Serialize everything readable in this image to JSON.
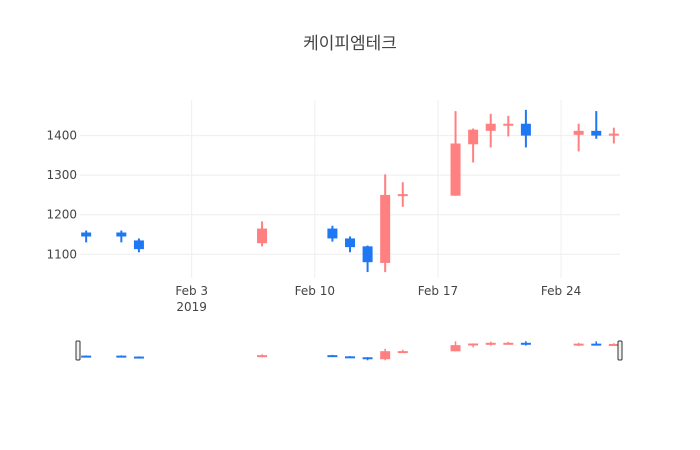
{
  "chart_data": {
    "type": "candlestick",
    "title": "케이피엠테크",
    "xlabel": "",
    "ylabel": "",
    "x_range": [
      "2019-01-28",
      "2019-02-27"
    ],
    "ylim": [
      1040,
      1490
    ],
    "y_ticks": [
      1100,
      1200,
      1300,
      1400
    ],
    "x_ticks": [
      {
        "date": "2019-02-03",
        "label": "Feb 3",
        "sublabel": "2019"
      },
      {
        "date": "2019-02-10",
        "label": "Feb 10",
        "sublabel": ""
      },
      {
        "date": "2019-02-17",
        "label": "Feb 17",
        "sublabel": ""
      },
      {
        "date": "2019-02-24",
        "label": "Feb 24",
        "sublabel": ""
      }
    ],
    "colors": {
      "increasing": "#ff8080",
      "decreasing": "#1f77f4",
      "grid": "#eeeeee",
      "text": "#444444"
    },
    "range_slider": true,
    "candles": [
      {
        "date": "2019-01-28",
        "open": 1155,
        "high": 1160,
        "low": 1130,
        "close": 1145
      },
      {
        "date": "2019-01-30",
        "open": 1155,
        "high": 1160,
        "low": 1130,
        "close": 1145
      },
      {
        "date": "2019-01-31",
        "open": 1135,
        "high": 1140,
        "low": 1105,
        "close": 1113
      },
      {
        "date": "2019-02-07",
        "open": 1128,
        "high": 1183,
        "low": 1120,
        "close": 1165
      },
      {
        "date": "2019-02-11",
        "open": 1165,
        "high": 1172,
        "low": 1132,
        "close": 1140
      },
      {
        "date": "2019-02-12",
        "open": 1140,
        "high": 1145,
        "low": 1105,
        "close": 1118
      },
      {
        "date": "2019-02-13",
        "open": 1120,
        "high": 1122,
        "low": 1055,
        "close": 1080
      },
      {
        "date": "2019-02-14",
        "open": 1078,
        "high": 1302,
        "low": 1055,
        "close": 1250
      },
      {
        "date": "2019-02-15",
        "open": 1248,
        "high": 1282,
        "low": 1220,
        "close": 1252
      },
      {
        "date": "2019-02-18",
        "open": 1248,
        "high": 1462,
        "low": 1248,
        "close": 1380
      },
      {
        "date": "2019-02-19",
        "open": 1378,
        "high": 1418,
        "low": 1332,
        "close": 1415
      },
      {
        "date": "2019-02-20",
        "open": 1412,
        "high": 1455,
        "low": 1370,
        "close": 1430
      },
      {
        "date": "2019-02-21",
        "open": 1428,
        "high": 1450,
        "low": 1398,
        "close": 1430
      },
      {
        "date": "2019-02-22",
        "open": 1430,
        "high": 1465,
        "low": 1370,
        "close": 1400
      },
      {
        "date": "2019-02-25",
        "open": 1402,
        "high": 1430,
        "low": 1360,
        "close": 1412
      },
      {
        "date": "2019-02-26",
        "open": 1412,
        "high": 1462,
        "low": 1392,
        "close": 1400
      },
      {
        "date": "2019-02-27",
        "open": 1400,
        "high": 1420,
        "low": 1380,
        "close": 1405
      }
    ]
  }
}
